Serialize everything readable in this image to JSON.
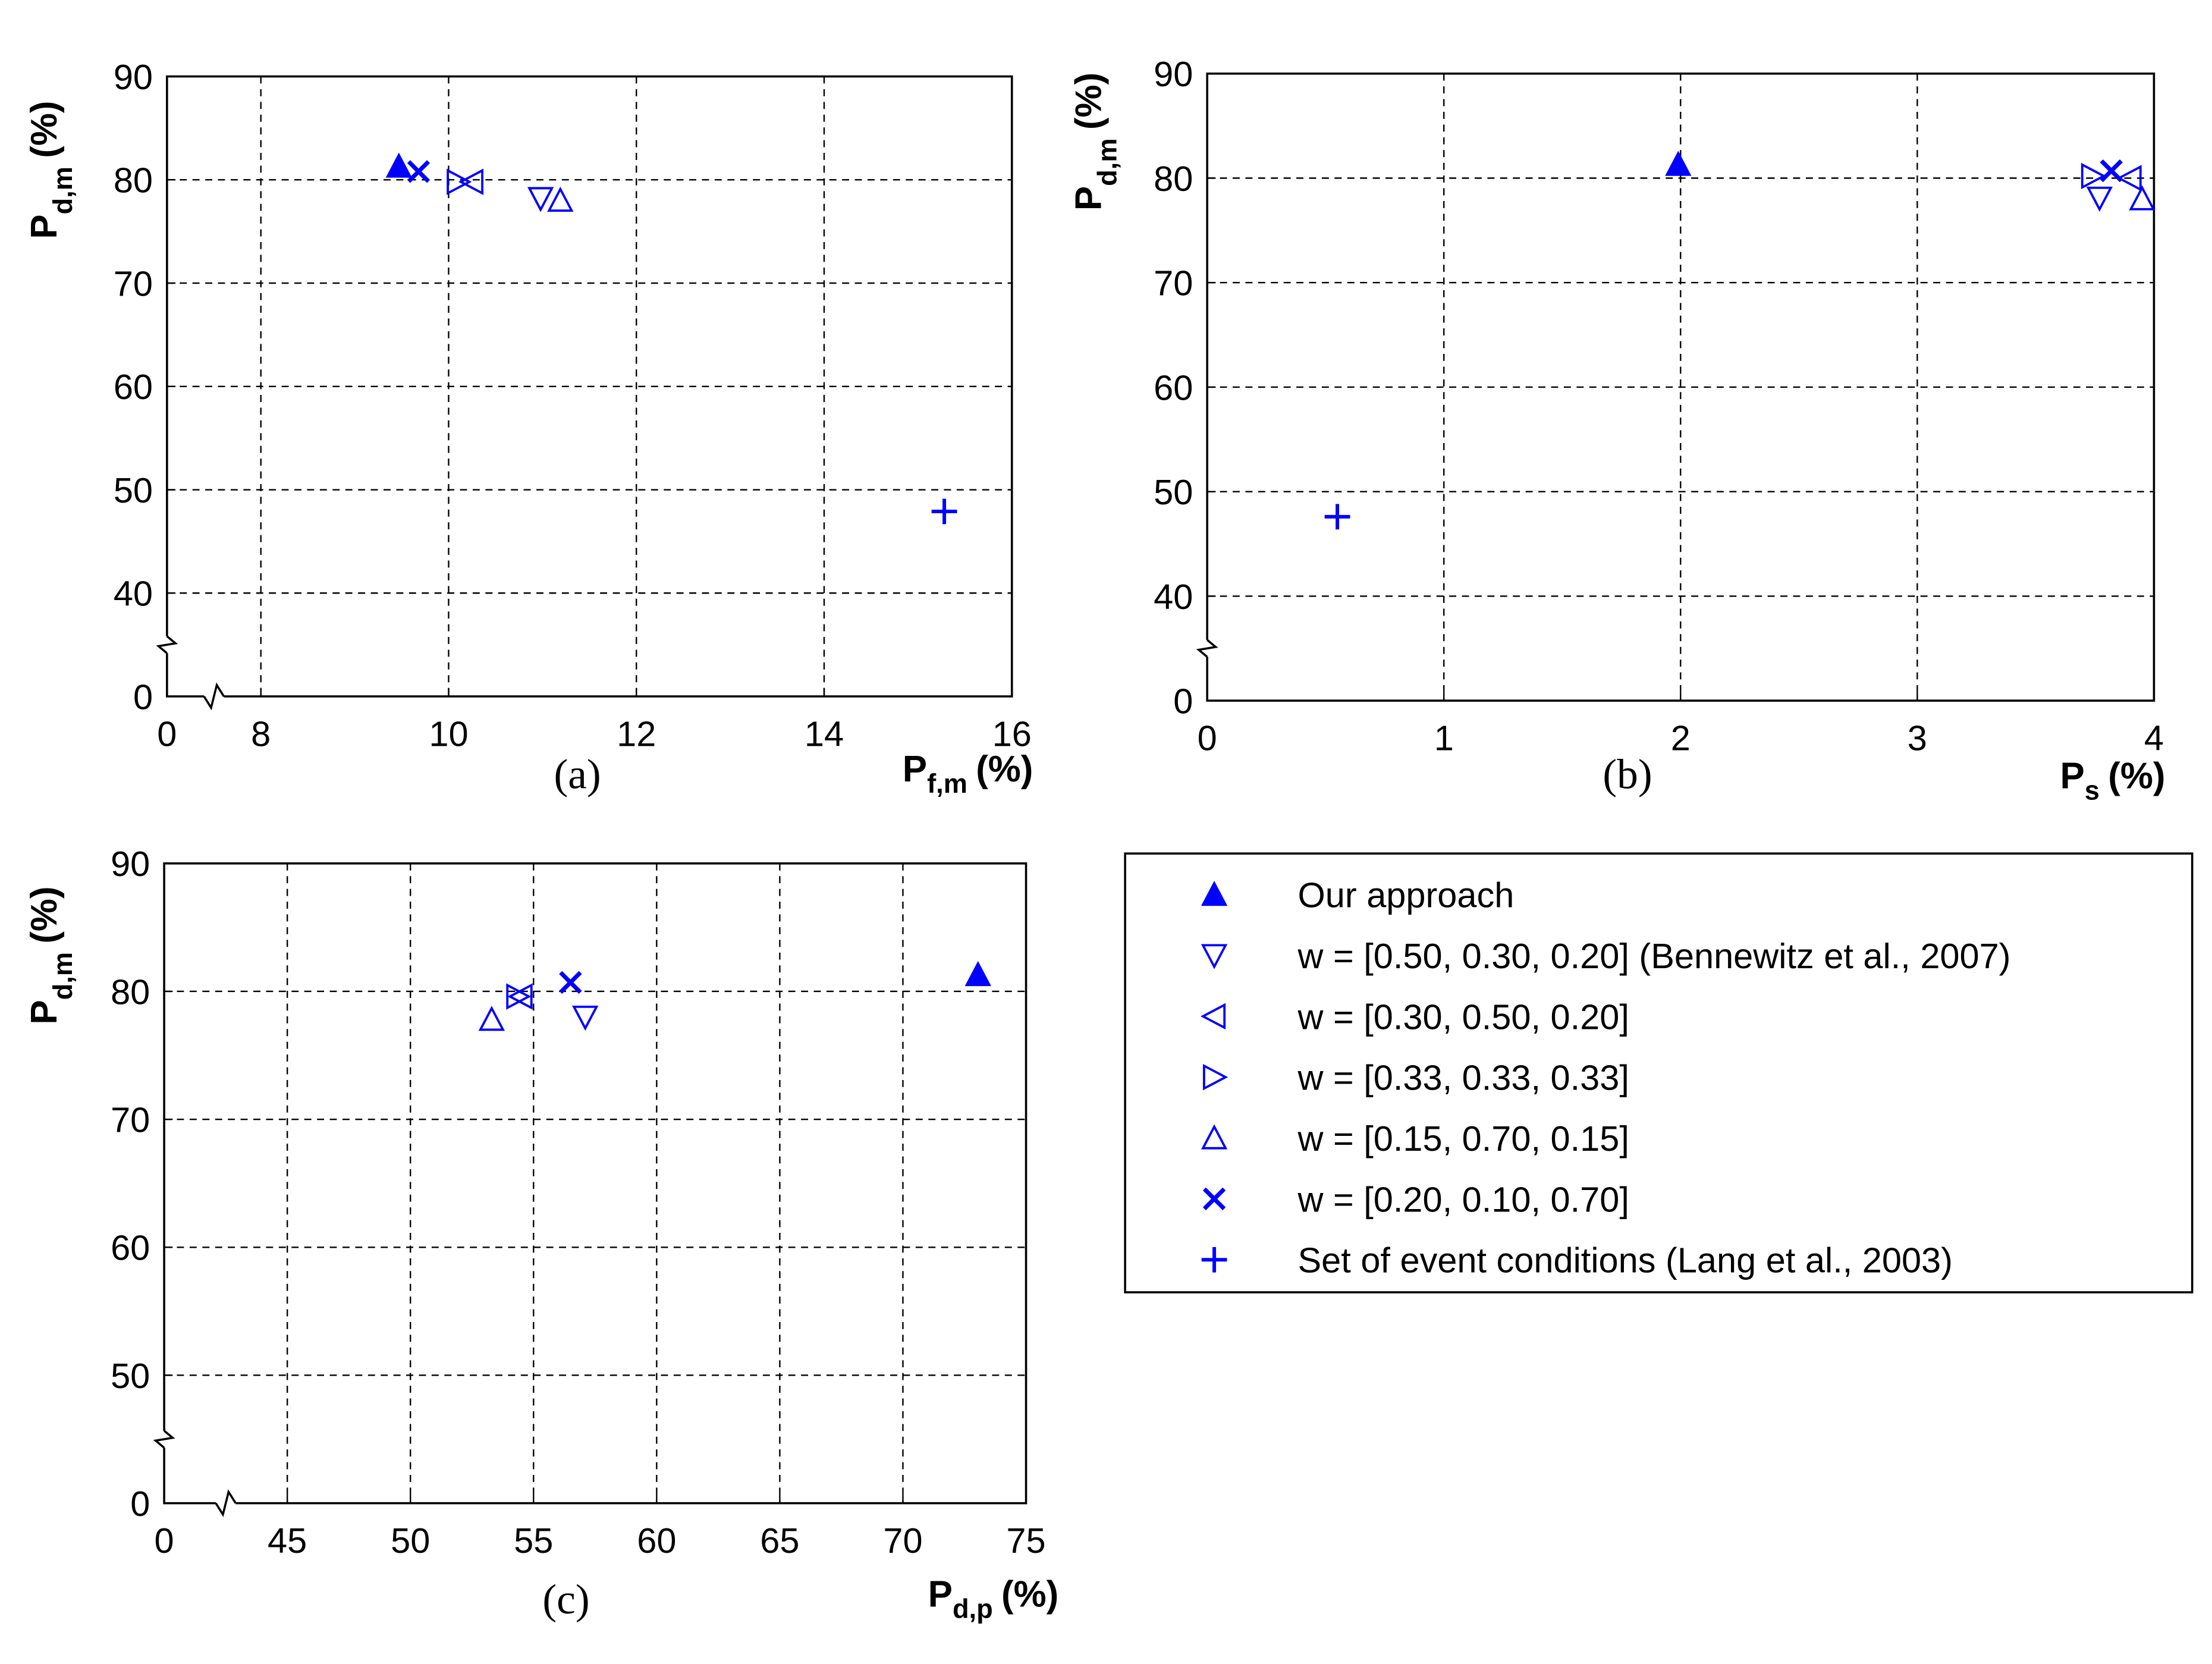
{
  "chart_data": [
    {
      "type": "scatter",
      "caption": "(a)",
      "xlabel": {
        "main": "P",
        "sub": "f,m",
        "unit": "(%)"
      },
      "ylabel": {
        "main": "P",
        "sub": "d,m",
        "unit": "(%)"
      },
      "x": [
        9.47,
        10.98,
        10.25,
        10.1,
        11.19,
        9.68,
        15.28
      ],
      "values": [
        81.3,
        78.2,
        79.8,
        79.8,
        78.0,
        80.8,
        47.9
      ],
      "xlim": [
        0,
        16
      ],
      "xticks": [
        0,
        8,
        10,
        12,
        14,
        16
      ],
      "xbreak": [
        0,
        7
      ],
      "ylim": [
        0,
        90
      ],
      "yticks": [
        0,
        40,
        50,
        60,
        70,
        80,
        90
      ],
      "ybreak": [
        0,
        30
      ],
      "grid": true
    },
    {
      "type": "scatter",
      "caption": "(b)",
      "xlabel": {
        "main": "P",
        "sub": "s",
        "unit": "(%)"
      },
      "ylabel": {
        "main": "P",
        "sub": "d,m",
        "unit": "(%)"
      },
      "x": [
        1.99,
        3.77,
        3.9,
        3.74,
        3.95,
        3.82,
        0.55
      ],
      "values": [
        81.3,
        78.1,
        80.0,
        80.2,
        78.0,
        80.7,
        47.6
      ],
      "xlim": [
        0,
        4
      ],
      "xticks": [
        0,
        1,
        2,
        3,
        4
      ],
      "ylim": [
        0,
        90
      ],
      "yticks": [
        0,
        40,
        50,
        60,
        70,
        80,
        90
      ],
      "ybreak": [
        0,
        30
      ],
      "grid": true
    },
    {
      "type": "scatter",
      "caption": "(c)",
      "xlabel": {
        "main": "P",
        "sub": "d,p",
        "unit": "(%)"
      },
      "ylabel": {
        "main": "P",
        "sub": "d,m",
        "unit": "(%)"
      },
      "x": [
        73.05,
        57.1,
        54.5,
        54.35,
        53.3,
        56.5
      ],
      "values": [
        81.3,
        78.0,
        79.6,
        79.6,
        77.8,
        80.7
      ],
      "xlim": [
        0,
        75
      ],
      "xticks": [
        0,
        45,
        50,
        55,
        60,
        65,
        70,
        75
      ],
      "xbreak": [
        0,
        40
      ],
      "ylim": [
        0,
        90
      ],
      "yticks": [
        0,
        50,
        60,
        70,
        80,
        90
      ],
      "ybreak": [
        0,
        40
      ],
      "grid": true
    }
  ],
  "color": "#0000ff",
  "legend": {
    "names": [
      "Our approach",
      "w = [0.50, 0.30, 0.20] (Bennewitz et al., 2007)",
      "w = [0.30, 0.50, 0.20]",
      "w = [0.33, 0.33, 0.33]",
      "w = [0.15, 0.70, 0.15]",
      "w = [0.20, 0.10, 0.70]",
      "Set of event conditions (Lang et al., 2003)"
    ],
    "markers": [
      "triangle-up-filled",
      "triangle-down",
      "triangle-left",
      "triangle-right",
      "triangle-up",
      "x",
      "plus"
    ]
  }
}
